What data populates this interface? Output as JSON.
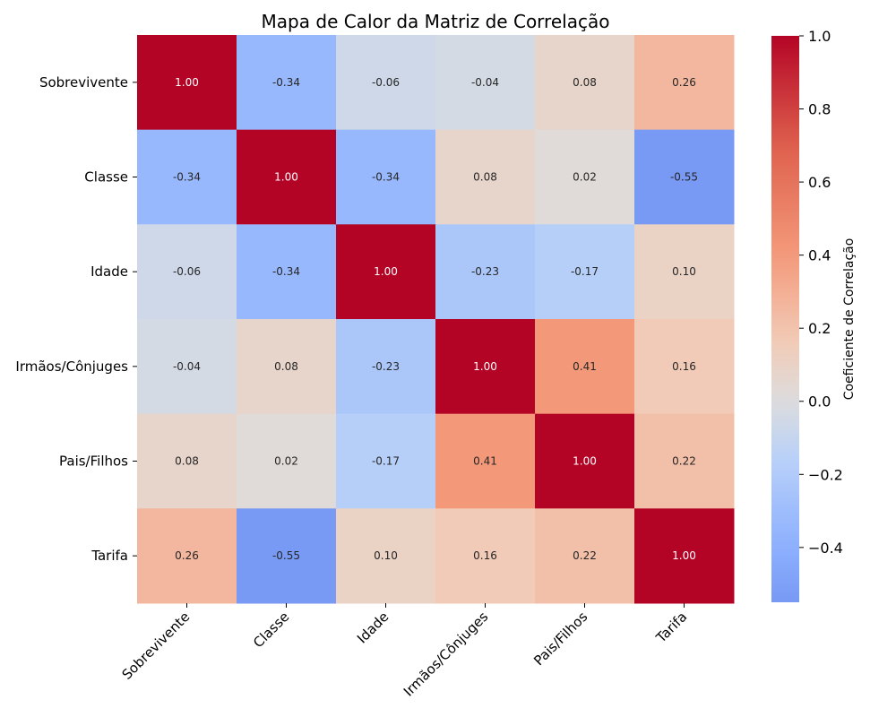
{
  "chart_data": {
    "type": "heatmap",
    "title": "Mapa de Calor da Matriz de Correlação",
    "row_labels": [
      "Sobrevivente",
      "Classe",
      "Idade",
      "Irmãos/Cônjuges",
      "Pais/Filhos",
      "Tarifa"
    ],
    "col_labels": [
      "Sobrevivente",
      "Classe",
      "Idade",
      "Irmãos/Cônjuges",
      "Pais/Filhos",
      "Tarifa"
    ],
    "values": [
      [
        1.0,
        -0.34,
        -0.06,
        -0.04,
        0.08,
        0.26
      ],
      [
        -0.34,
        1.0,
        -0.34,
        0.08,
        0.02,
        -0.55
      ],
      [
        -0.06,
        -0.34,
        1.0,
        -0.23,
        -0.17,
        0.1
      ],
      [
        -0.04,
        0.08,
        -0.23,
        1.0,
        0.41,
        0.16
      ],
      [
        0.08,
        0.02,
        -0.17,
        0.41,
        1.0,
        0.22
      ],
      [
        0.26,
        -0.55,
        0.1,
        0.16,
        0.22,
        1.0
      ]
    ],
    "annotations_format": "2 decimals",
    "colormap": "coolwarm",
    "colorbar": {
      "label": "Coeficiente de Correlação",
      "range": [
        -0.55,
        1.0
      ],
      "ticks": [
        "1.0",
        "0.8",
        "0.6",
        "0.4",
        "0.2",
        "0.0",
        "−0.2",
        "−0.4"
      ]
    },
    "grid": false
  }
}
